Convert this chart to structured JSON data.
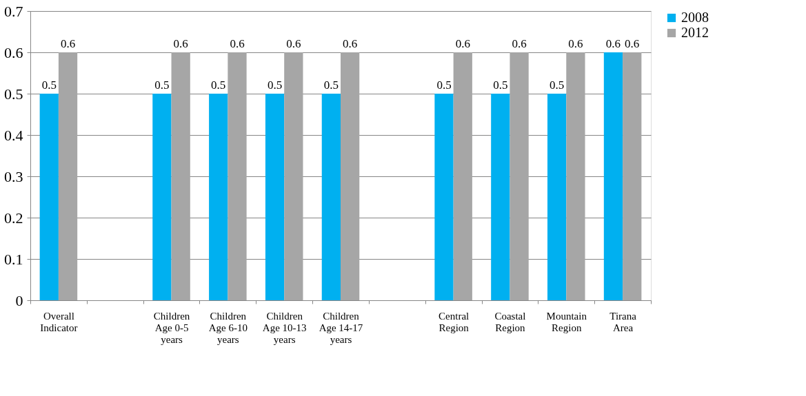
{
  "chart_data": {
    "type": "bar",
    "categories": [
      "Overall Indicator",
      null,
      "Children Age 0-5 years",
      "Children Age 6-10 years",
      "Children Age 10-13 years",
      "Children Age 14-17 years",
      null,
      "Central Region",
      "Coastal Region",
      "Mountain Region",
      "Tirana Area"
    ],
    "series": [
      {
        "name": "2008",
        "color": "#00b0f0",
        "values": [
          0.5,
          null,
          0.5,
          0.5,
          0.5,
          0.5,
          null,
          0.5,
          0.5,
          0.5,
          0.6
        ]
      },
      {
        "name": "2012",
        "color": "#a6a6a6",
        "values": [
          0.6,
          null,
          0.6,
          0.6,
          0.6,
          0.6,
          null,
          0.6,
          0.6,
          0.6,
          0.6
        ]
      }
    ],
    "ylim": [
      0,
      0.7
    ],
    "yticks": [
      0,
      0.1,
      0.2,
      0.3,
      0.4,
      0.5,
      0.6,
      0.7
    ],
    "grid": "y",
    "legend": "right",
    "data_labels": true
  }
}
